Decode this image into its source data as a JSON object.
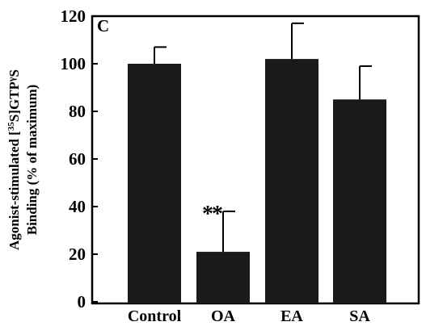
{
  "chart_data": {
    "type": "bar",
    "panel_label": "C",
    "categories": [
      "Control",
      "OA",
      "EA",
      "SA"
    ],
    "values": [
      100,
      21,
      102,
      85
    ],
    "error_upper": [
      107,
      38,
      117,
      99
    ],
    "annotations": [
      {
        "category": "OA",
        "text": "**"
      }
    ],
    "ylabel_line1_pre": "Agonist-stimulated [",
    "ylabel_sup": "35",
    "ylabel_line1_post": "S]GTP",
    "ylabel_gamma": "γ",
    "ylabel_line1_end": "S",
    "ylabel_line2": "Binding (% of maximum)",
    "xlabel": "",
    "ylim": [
      0,
      120
    ],
    "yticks": [
      0,
      20,
      40,
      60,
      80,
      100,
      120
    ],
    "grid": false,
    "bar_color": "#1a1a1a"
  }
}
